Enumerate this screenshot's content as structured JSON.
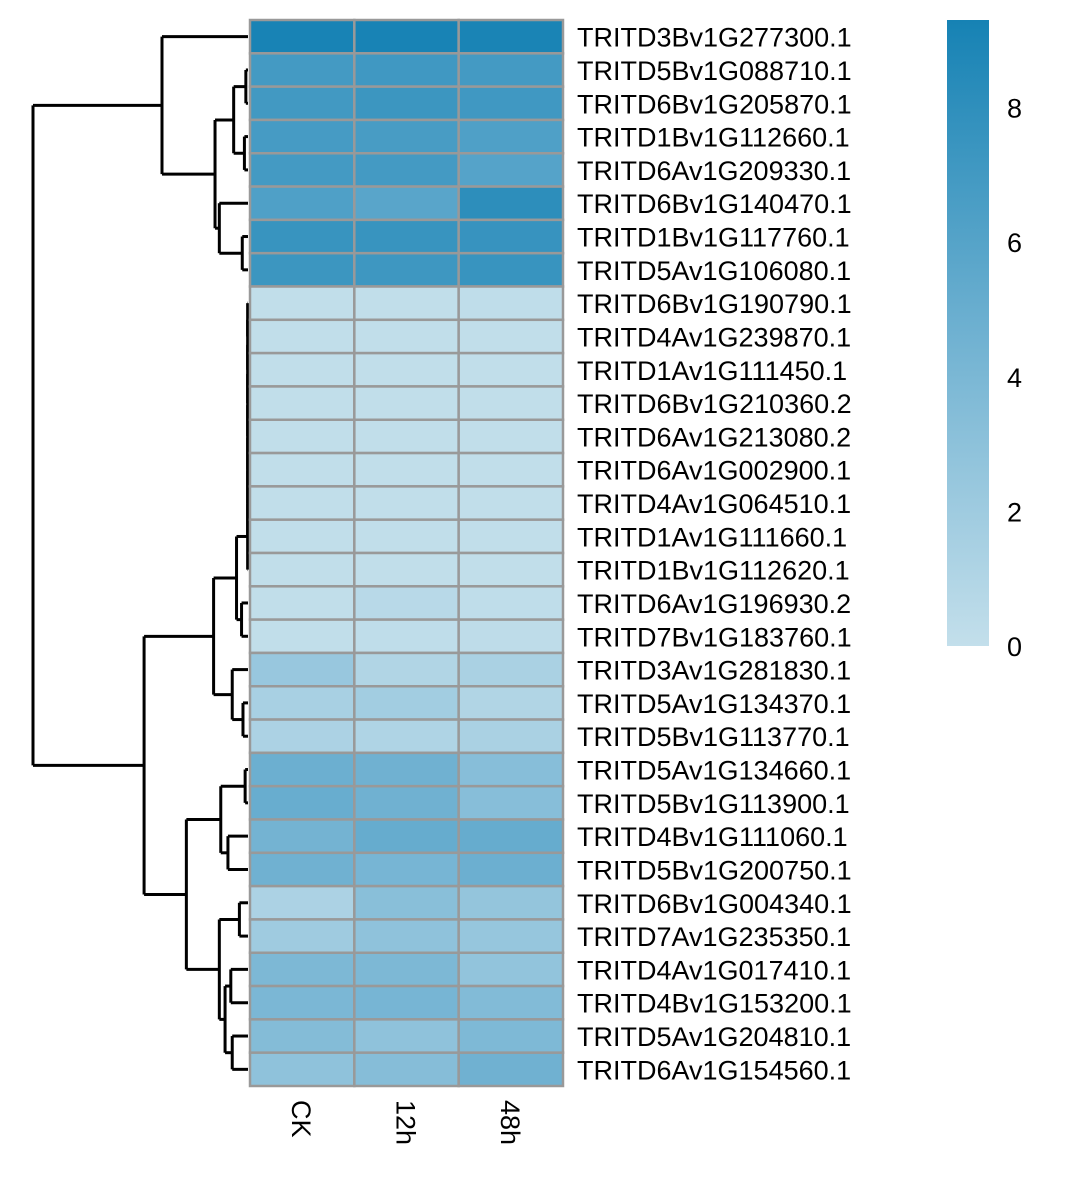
{
  "chart_data": {
    "type": "heatmap",
    "title": "",
    "columns": [
      "CK",
      "12h",
      "48h"
    ],
    "rows": [
      {
        "label": "TRITD3Bv1G277300.1",
        "values": [
          9.2,
          9.2,
          9.1
        ]
      },
      {
        "label": "TRITD5Bv1G088710.1",
        "values": [
          6.9,
          7.1,
          6.9
        ]
      },
      {
        "label": "TRITD6Bv1G205870.1",
        "values": [
          7.0,
          7.3,
          7.1
        ]
      },
      {
        "label": "TRITD1Bv1G112660.1",
        "values": [
          6.8,
          6.7,
          6.3
        ]
      },
      {
        "label": "TRITD6Av1G209330.1",
        "values": [
          6.9,
          6.9,
          6.0
        ]
      },
      {
        "label": "TRITD6Bv1G140470.1",
        "values": [
          6.3,
          5.8,
          8.1
        ]
      },
      {
        "label": "TRITD1Bv1G117760.1",
        "values": [
          7.5,
          7.5,
          7.6
        ]
      },
      {
        "label": "TRITD5Av1G106080.1",
        "values": [
          7.3,
          7.2,
          7.5
        ]
      },
      {
        "label": "TRITD6Bv1G190790.1",
        "values": [
          0.1,
          0.1,
          0.2
        ]
      },
      {
        "label": "TRITD4Av1G239870.1",
        "values": [
          0.1,
          0.1,
          0.1
        ]
      },
      {
        "label": "TRITD1Av1G111450.1",
        "values": [
          0.1,
          0.1,
          0.1
        ]
      },
      {
        "label": "TRITD6Bv1G210360.2",
        "values": [
          0.1,
          0.1,
          0.1
        ]
      },
      {
        "label": "TRITD6Av1G213080.2",
        "values": [
          0.1,
          0.1,
          0.1
        ]
      },
      {
        "label": "TRITD6Av1G002900.1",
        "values": [
          0.1,
          0.1,
          0.1
        ]
      },
      {
        "label": "TRITD4Av1G064510.1",
        "values": [
          0.1,
          0.1,
          0.1
        ]
      },
      {
        "label": "TRITD1Av1G111660.1",
        "values": [
          0.1,
          0.1,
          0.1
        ]
      },
      {
        "label": "TRITD1Bv1G112620.1",
        "values": [
          0.1,
          0.1,
          0.1
        ]
      },
      {
        "label": "TRITD6Av1G196930.2",
        "values": [
          0.1,
          0.6,
          0.2
        ]
      },
      {
        "label": "TRITD7Bv1G183760.1",
        "values": [
          0.1,
          0.2,
          0.3
        ]
      },
      {
        "label": "TRITD3Av1G281830.1",
        "values": [
          2.4,
          1.0,
          1.4
        ]
      },
      {
        "label": "TRITD5Av1G134370.1",
        "values": [
          1.5,
          1.8,
          1.0
        ]
      },
      {
        "label": "TRITD5Bv1G113770.1",
        "values": [
          1.3,
          1.1,
          1.4
        ]
      },
      {
        "label": "TRITD5Av1G134660.1",
        "values": [
          4.8,
          4.6,
          3.3
        ]
      },
      {
        "label": "TRITD5Bv1G113900.1",
        "values": [
          5.0,
          4.6,
          3.3
        ]
      },
      {
        "label": "TRITD4Bv1G111060.1",
        "values": [
          4.4,
          5.1,
          5.1
        ]
      },
      {
        "label": "TRITD5Bv1G200750.1",
        "values": [
          4.6,
          4.2,
          4.8
        ]
      },
      {
        "label": "TRITD6Bv1G004340.1",
        "values": [
          1.3,
          3.2,
          2.6
        ]
      },
      {
        "label": "TRITD7Av1G235350.1",
        "values": [
          2.0,
          2.9,
          2.5
        ]
      },
      {
        "label": "TRITD4Av1G017410.1",
        "values": [
          3.9,
          3.9,
          2.7
        ]
      },
      {
        "label": "TRITD4Bv1G153200.1",
        "values": [
          4.0,
          4.2,
          3.6
        ]
      },
      {
        "label": "TRITD5Av1G204810.1",
        "values": [
          3.5,
          2.9,
          3.8
        ]
      },
      {
        "label": "TRITD6Av1G154560.1",
        "values": [
          2.9,
          3.4,
          4.6
        ]
      }
    ],
    "color_scale": {
      "low_color": "#c3dfeb",
      "mid_color": "#6fb1d1",
      "high_color": "#1682b4",
      "range": [
        0,
        9.3
      ],
      "ticks": [
        0,
        2,
        4,
        6,
        8
      ]
    },
    "cell_border_color": "#999999",
    "row_dendrogram": {
      "merges": [
        {
          "a": 1,
          "b": 2,
          "height": 0.3
        },
        {
          "a": 3,
          "b": 4,
          "height": 0.5
        },
        {
          "a": "1-2",
          "b": "3-4",
          "height": 2.0
        },
        {
          "a": 6,
          "b": 7,
          "height": 0.8
        },
        {
          "a": 5,
          "b": "6-7",
          "height": 4.0
        },
        {
          "a": "1-4",
          "b": "5-7",
          "height": 4.6
        },
        {
          "a": 0,
          "b": "1-7",
          "height": 12.0
        },
        {
          "a": "8-16",
          "b": "",
          "height": 0.05
        },
        {
          "a": 17,
          "b": 18,
          "height": 0.9
        },
        {
          "a": "8-16",
          "b": "17-18",
          "height": 1.6
        },
        {
          "a": 20,
          "b": 21,
          "height": 0.7
        },
        {
          "a": 19,
          "b": "20-21",
          "height": 2.2
        },
        {
          "a": "8-18",
          "b": "19-21",
          "height": 4.8
        },
        {
          "a": 22,
          "b": 23,
          "height": 0.4
        },
        {
          "a": 24,
          "b": 25,
          "height": 2.8
        },
        {
          "a": "22-23",
          "b": "24-25",
          "height": 3.8
        },
        {
          "a": 26,
          "b": 27,
          "height": 1.2
        },
        {
          "a": 28,
          "b": 29,
          "height": 2.4
        },
        {
          "a": 30,
          "b": 31,
          "height": 2.2
        },
        {
          "a": "28-29",
          "b": "30-31",
          "height": 3.2
        },
        {
          "a": "26-27",
          "b": "28-31",
          "height": 4.0
        },
        {
          "a": "22-25",
          "b": "26-31",
          "height": 8.6
        },
        {
          "a": "8-21",
          "b": "22-31",
          "height": 14.5
        },
        {
          "a": "0-7",
          "b": "8-31",
          "height": 30.0
        }
      ]
    }
  }
}
